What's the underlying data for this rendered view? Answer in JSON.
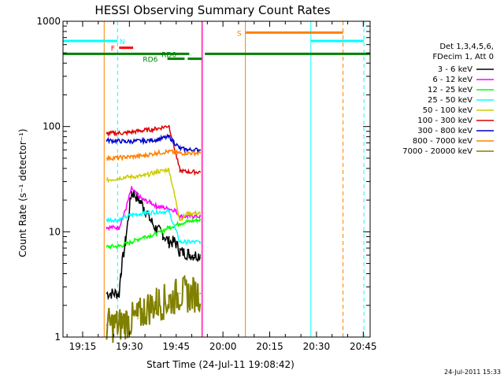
{
  "chart_data": {
    "type": "line",
    "title": "HESSI Observing Summary Count Rates",
    "xlabel": "Start Time (24-Jul-11 19:08:42)",
    "ylabel": "Count Rate (s⁻¹ detector⁻¹)",
    "x_unit": "minutes after 19:08:42",
    "xlim": [
      0,
      98.5
    ],
    "ylim": [
      1,
      1000
    ],
    "yscale": "log",
    "x_ticks": [
      {
        "t": 6.3,
        "label": "19:15"
      },
      {
        "t": 21.3,
        "label": "19:30"
      },
      {
        "t": 36.3,
        "label": "19:45"
      },
      {
        "t": 51.3,
        "label": "20:00"
      },
      {
        "t": 66.3,
        "label": "20:15"
      },
      {
        "t": 81.3,
        "label": "20:30"
      },
      {
        "t": 96.3,
        "label": "20:45"
      }
    ],
    "y_ticks": [
      {
        "v": 1,
        "label": "1"
      },
      {
        "v": 10,
        "label": "10"
      },
      {
        "v": 100,
        "label": "100"
      },
      {
        "v": 1000,
        "label": "1000"
      }
    ],
    "legend": {
      "title_lines": [
        "Det 1,3,4,5,6,",
        "FDecim 1, Att 0"
      ],
      "placement": "right"
    },
    "series": [
      {
        "name": "3 - 6 keV",
        "color": "#000000",
        "t": [
          14,
          18,
          18.5,
          20,
          22,
          24,
          26,
          28,
          30,
          32,
          34,
          36,
          37.5,
          40,
          42,
          44
        ],
        "values": [
          2.6,
          2.6,
          4,
          8,
          24,
          21,
          17,
          13,
          10.5,
          9.5,
          8,
          8,
          6.5,
          6.2,
          6,
          6
        ]
      },
      {
        "name": "6 - 12 keV",
        "color": "#ff00ff",
        "t": [
          14,
          18,
          20,
          22,
          24,
          26,
          28,
          30,
          32,
          34,
          36,
          37.5,
          40,
          42,
          44
        ],
        "values": [
          11,
          11,
          16,
          26,
          22,
          20,
          19,
          17.5,
          17,
          16.5,
          16,
          14,
          14,
          14,
          14
        ]
      },
      {
        "name": "12 - 25 keV",
        "color": "#00ff00",
        "t": [
          14,
          18,
          22,
          26,
          30,
          34,
          37.5,
          40,
          44
        ],
        "values": [
          7.2,
          7.3,
          8,
          9,
          9.5,
          11,
          12,
          12.5,
          13
        ]
      },
      {
        "name": "25 - 50 keV",
        "color": "#00ffff",
        "t": [
          14,
          18,
          22,
          26,
          30,
          34,
          37.5,
          40,
          44
        ],
        "values": [
          13,
          13,
          14.5,
          15,
          15.5,
          15.5,
          8,
          8,
          8
        ]
      },
      {
        "name": "50 - 100 keV",
        "color": "#cccc00",
        "t": [
          14,
          20,
          26,
          30,
          34,
          37.5,
          40,
          44
        ],
        "values": [
          31,
          33,
          34,
          37,
          39,
          13,
          15,
          15
        ]
      },
      {
        "name": "100 - 300 keV",
        "color": "#dd0000",
        "t": [
          14,
          20,
          26,
          30,
          34,
          37.5,
          40,
          44
        ],
        "values": [
          86,
          87,
          92,
          95,
          102,
          38,
          37,
          37
        ]
      },
      {
        "name": "300 - 800 keV",
        "color": "#0000cc",
        "t": [
          14,
          20,
          26,
          30,
          34,
          37.5,
          40,
          44
        ],
        "values": [
          74,
          72,
          73,
          75,
          80,
          62,
          60,
          60
        ]
      },
      {
        "name": "800 - 7000 keV",
        "color": "#ff8000",
        "t": [
          14,
          20,
          26,
          30,
          34,
          37.5,
          40,
          44
        ],
        "values": [
          50,
          51,
          53,
          56,
          58,
          56,
          56,
          56
        ]
      },
      {
        "name": "7000 - 20000 keV",
        "color": "#808000",
        "t": [
          14,
          18,
          20,
          24,
          26,
          30,
          34,
          37.5,
          40,
          44
        ],
        "values": [
          1.3,
          1.3,
          1.4,
          1.5,
          1.8,
          2.1,
          2.2,
          2.6,
          2.5,
          2.6
        ]
      }
    ],
    "flag_bars": [
      {
        "label": "N",
        "color": "#00ffff",
        "segments": [
          [
            0,
            17.5
          ],
          [
            79.5,
            96.5
          ]
        ],
        "level": 650,
        "label_t": 19.0
      },
      {
        "label": "F",
        "color": "#ff0000",
        "segments": [
          [
            18.0,
            22.5
          ]
        ],
        "level": 560,
        "label_t": 16.0
      },
      {
        "label": "S",
        "color": "#ff8000",
        "segments": [
          [
            58.5,
            89.8
          ]
        ],
        "level": 780,
        "label_t": 56.5
      },
      {
        "label": "RD0",
        "color": "#008000",
        "segments": [
          [
            0,
            40.5
          ],
          [
            45.5,
            98.5
          ]
        ],
        "level": 490,
        "label_t": 34.0
      },
      {
        "label": "RD6",
        "color": "#008000",
        "segments": [
          [
            33.5,
            39.0
          ],
          [
            40.0,
            44.5
          ]
        ],
        "level": 440,
        "label_t": 28.0
      }
    ],
    "vlines": [
      {
        "t": 0.0,
        "color": "#00ffff",
        "style": "solid"
      },
      {
        "t": 13.2,
        "color": "#ff8000",
        "style": "solid"
      },
      {
        "t": 17.5,
        "color": "#00ffff",
        "style": "dashed"
      },
      {
        "t": 44.5,
        "color": "#ff8000",
        "style": "solid"
      },
      {
        "t": 44.7,
        "color": "#ff00ff",
        "style": "solid"
      },
      {
        "t": 58.5,
        "color": "#ff8000",
        "style": "solid"
      },
      {
        "t": 79.5,
        "color": "#00ffff",
        "style": "solid"
      },
      {
        "t": 89.8,
        "color": "#ff8000",
        "style": "dashed"
      },
      {
        "t": 96.5,
        "color": "#00ffff",
        "style": "dashed"
      }
    ],
    "date_stamp": "24-Jul-2011 15:33"
  }
}
